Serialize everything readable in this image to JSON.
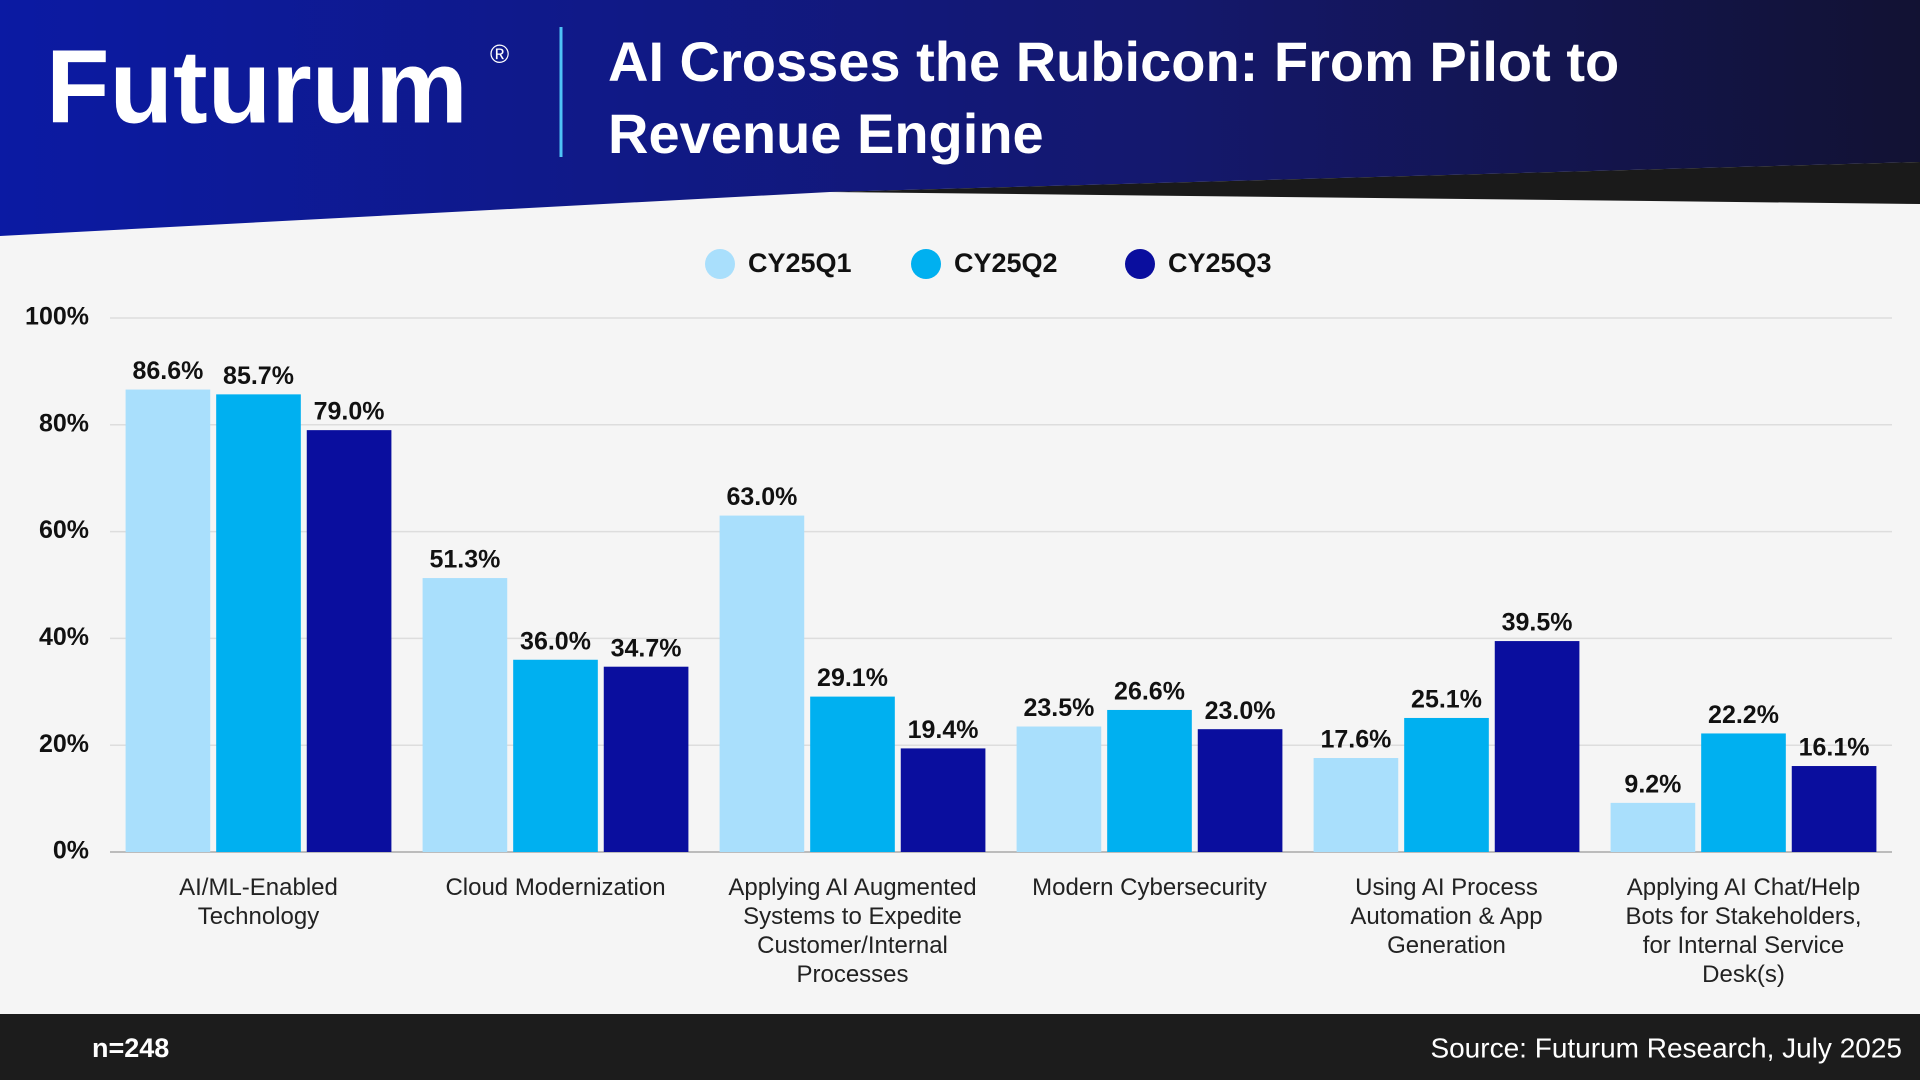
{
  "brand": "Futurum",
  "brand_mark": "®",
  "chart_data": {
    "type": "bar",
    "title": "AI Crosses the Rubicon: From Pilot to Revenue Engine",
    "categories": [
      "AI/ML-Enabled Technology",
      "Cloud Modernization",
      "Applying AI Augmented Systems to Expedite Customer/Internal Processes",
      "Modern Cybersecurity",
      "Using AI Process Automation & App Generation",
      "Applying AI Chat/Help Bots for Stakeholders, for Internal Service Desk(s)"
    ],
    "series": [
      {
        "name": "CY25Q1",
        "color": "#a9dffc",
        "values": [
          86.6,
          51.3,
          63.0,
          23.5,
          17.6,
          9.2
        ],
        "value_labels": [
          "86.6%",
          "51.3%",
          "63.0%",
          "23.5%",
          "17.6%",
          "9.2%"
        ]
      },
      {
        "name": "CY25Q2",
        "color": "#00b0f0",
        "values": [
          85.7,
          36.0,
          29.1,
          26.6,
          25.1,
          22.2
        ],
        "value_labels": [
          "85.7%",
          "36.0%",
          "29.1%",
          "26.6%",
          "25.1%",
          "22.2%"
        ]
      },
      {
        "name": "CY25Q3",
        "color": "#0a0e9e",
        "values": [
          79.0,
          34.7,
          19.4,
          23.0,
          39.5,
          16.1
        ],
        "value_labels": [
          "79.0%",
          "34.7%",
          "19.4%",
          "23.0%",
          "39.5%",
          "16.1%"
        ]
      }
    ],
    "ylim": [
      0,
      100
    ],
    "yticks": [
      {
        "value": 0,
        "label": "0%"
      },
      {
        "value": 20,
        "label": "20%"
      },
      {
        "value": 40,
        "label": "40%"
      },
      {
        "value": 60,
        "label": "60%"
      },
      {
        "value": 80,
        "label": "80%"
      },
      {
        "value": 100,
        "label": "100%"
      }
    ],
    "grid": true,
    "legend": "top"
  },
  "footer": {
    "sample": "n=248",
    "source": "Source: Futurum Research, July 2025"
  }
}
